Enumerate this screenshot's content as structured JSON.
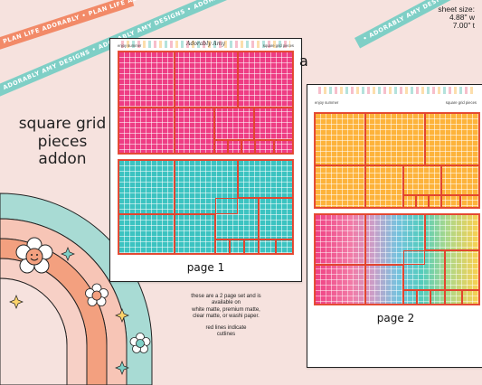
{
  "ribbons": {
    "top_left": "PLAN LIFE ADORABLY • PLAN LIFE ADORABLY",
    "mid_left": "ADORABLY AMY DESIGNS • ADORABLY AMY DESIGNS • ADORABLY AMY DESIGNS",
    "top_right": "• ADORABLY AMY DESIGNS"
  },
  "sheet_size": {
    "label": "sheet size:",
    "width": "4.88\" w",
    "height": "7.00\" t"
  },
  "title": {
    "line1": "square grid",
    "line2": "pieces",
    "line3": "addon"
  },
  "variant_letter": "a",
  "card1": {
    "header_left": "enjoy summer",
    "header_center": "Adorably Amy",
    "header_right": "square grid pieces",
    "page_label": "page 1"
  },
  "card2": {
    "header_left": "enjoy summer",
    "header_right": "square grid pieces",
    "page_label": "page 2"
  },
  "note": {
    "line1": "these are a 2 page set and is",
    "line2": "available on",
    "line3": "white matte, premium matte,",
    "line4": "clear matte, or washi paper.",
    "line5": "red lines indicate",
    "line6": "cutlines"
  },
  "colors": {
    "background": "#f6e2de",
    "pink": "#ee3d84",
    "teal": "#3cc3c1",
    "orange": "#fdb33b",
    "cutline": "#e2452f"
  },
  "icons": [
    "rainbow-illustration",
    "smiley-flower-icon",
    "daisy-icon",
    "sparkle-icon"
  ]
}
